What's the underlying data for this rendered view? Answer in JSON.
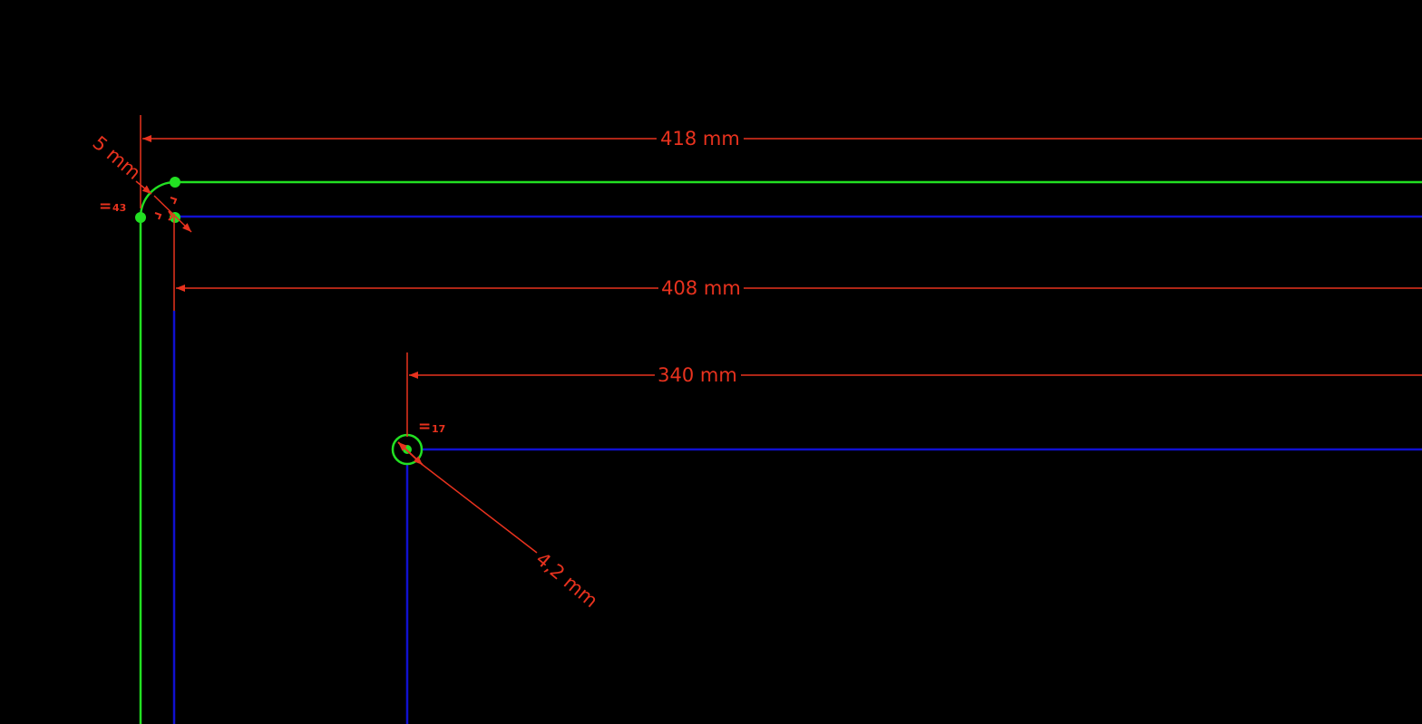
{
  "colors": {
    "background": "#000000",
    "constrained_geometry": "#22e022",
    "construction_geometry": "#1010d0",
    "dimension": "#e8321e"
  },
  "dimensions": {
    "top_width": "418 mm",
    "inner_width": "408 mm",
    "hole_offset": "340 mm",
    "fillet_offset": "5 mm",
    "hole_radius": "4,2 mm"
  },
  "constraints": {
    "corner_equal": {
      "symbol": "=",
      "index": "43"
    },
    "hole_equal": {
      "symbol": "=",
      "index": "17"
    }
  }
}
